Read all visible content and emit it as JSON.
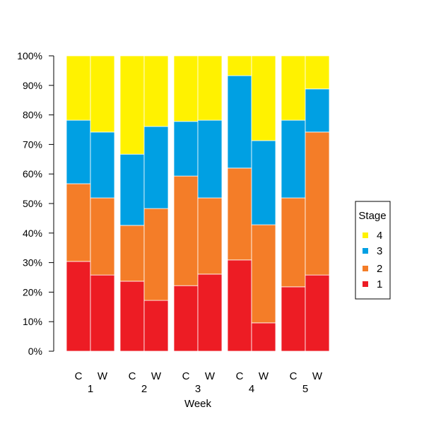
{
  "chart_data": {
    "type": "bar",
    "stacked": "percent",
    "title": "",
    "xlabel": "Week",
    "ylabel": "",
    "ylim": [
      0,
      100
    ],
    "yticks": [
      "0%",
      "10%",
      "20%",
      "30%",
      "40%",
      "50%",
      "60%",
      "70%",
      "80%",
      "90%",
      "100%"
    ],
    "groups": [
      "1",
      "2",
      "3",
      "4",
      "5"
    ],
    "subcategories": [
      "C",
      "W"
    ],
    "legend": {
      "title": "Stage",
      "position": "right",
      "entries": [
        "4",
        "3",
        "2",
        "1"
      ]
    },
    "series": [
      {
        "name": "1",
        "color": "#ED1C24",
        "values": [
          30.4,
          25.8,
          23.7,
          17.2,
          22.2,
          26.1,
          30.9,
          9.6,
          21.8,
          25.8
        ]
      },
      {
        "name": "2",
        "color": "#F47D28",
        "values": [
          26.3,
          26.1,
          18.9,
          31.1,
          37.1,
          25.8,
          31.1,
          33.2,
          30.1,
          48.4
        ]
      },
      {
        "name": "3",
        "color": "#00A0E3",
        "values": [
          21.5,
          22.3,
          24.1,
          27.8,
          18.5,
          26.3,
          31.3,
          28.5,
          26.3,
          14.6
        ]
      },
      {
        "name": "4",
        "color": "#FFF200",
        "values": [
          21.8,
          25.8,
          33.3,
          23.9,
          22.2,
          21.8,
          6.7,
          28.7,
          21.8,
          11.2
        ]
      }
    ]
  }
}
